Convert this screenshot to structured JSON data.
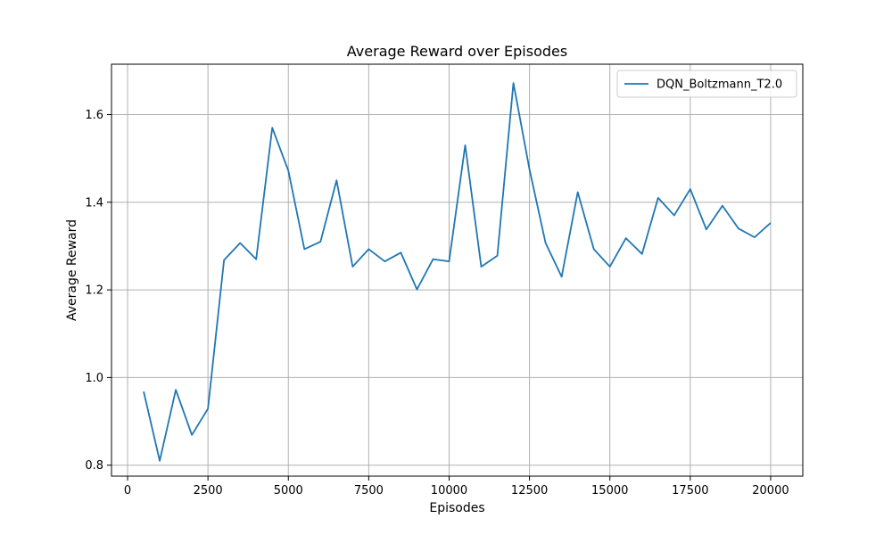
{
  "chart_data": {
    "type": "line",
    "title": "Average Reward over Episodes",
    "xlabel": "Episodes",
    "ylabel": "Average Reward",
    "xlim": [
      -500,
      21000
    ],
    "ylim": [
      0.775,
      1.715
    ],
    "xticks": [
      0,
      2500,
      5000,
      7500,
      10000,
      12500,
      15000,
      17500,
      20000
    ],
    "yticks": [
      0.8,
      1.0,
      1.2,
      1.4,
      1.6
    ],
    "xtick_labels": [
      "0",
      "2500",
      "5000",
      "7500",
      "10000",
      "12500",
      "15000",
      "17500",
      "20000"
    ],
    "ytick_labels": [
      "0.8",
      "1.0",
      "1.2",
      "1.4",
      "1.6"
    ],
    "grid": true,
    "legend_position": "top-right",
    "series": [
      {
        "name": "DQN_Boltzmann_T2.0",
        "color": "#1f77b4",
        "x": [
          500,
          1000,
          1500,
          2000,
          2500,
          3000,
          3500,
          4000,
          4500,
          5000,
          5500,
          6000,
          6500,
          7000,
          7500,
          8000,
          8500,
          9000,
          9500,
          10000,
          10500,
          11000,
          11500,
          12000,
          12500,
          13000,
          13500,
          14000,
          14500,
          15000,
          15500,
          16000,
          16500,
          17000,
          17500,
          18000,
          18500,
          19000,
          19500,
          20000
        ],
        "y": [
          0.968,
          0.81,
          0.972,
          0.869,
          0.929,
          1.268,
          1.307,
          1.27,
          1.57,
          1.472,
          1.293,
          1.31,
          1.45,
          1.253,
          1.293,
          1.265,
          1.285,
          1.201,
          1.27,
          1.265,
          1.53,
          1.253,
          1.278,
          1.672,
          1.475,
          1.307,
          1.23,
          1.423,
          1.293,
          1.253,
          1.318,
          1.282,
          1.41,
          1.37,
          1.43,
          1.338,
          1.392,
          1.34,
          1.32,
          1.353
        ]
      }
    ]
  }
}
